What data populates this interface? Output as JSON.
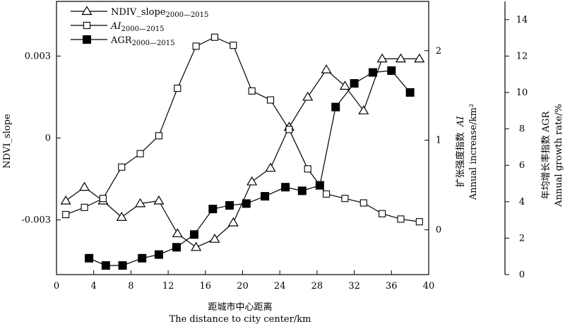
{
  "chart_data": {
    "type": "line",
    "xlabel": "距城市中心距离",
    "xlabel_en": "The distance to city center/km",
    "x_ticks": [
      0,
      4,
      8,
      12,
      16,
      20,
      24,
      28,
      32,
      36,
      40
    ],
    "xlim": [
      0,
      40
    ],
    "axes": {
      "left": {
        "label": "NDVI_slope",
        "ylim": [
          -0.005,
          0.005
        ],
        "ticks": [
          -0.003,
          0,
          0.003
        ],
        "tick_labels": [
          "-0.003",
          "0",
          "0.003"
        ]
      },
      "middle": {
        "label_zh": "扩张强度指数",
        "label_var": "AI",
        "label_en": "Annual increase/km²",
        "ylim": [
          -0.5,
          2.55
        ],
        "ticks": [
          0,
          1,
          2
        ],
        "tick_labels": [
          "0",
          "1",
          "2"
        ]
      },
      "right": {
        "label_zh": "年均增长率指数 AGR",
        "label_en": "Annual growth rate/%",
        "ylim": [
          0,
          15
        ],
        "ticks": [
          0,
          2,
          4,
          6,
          8,
          10,
          12,
          14
        ],
        "tick_labels": [
          "0",
          "2",
          "4",
          "6",
          "8",
          "10",
          "12",
          "14"
        ]
      }
    },
    "legend": {
      "position": "top-left",
      "entries": [
        {
          "main": "NDIV_slope",
          "sub": "2000—2015",
          "italic": false
        },
        {
          "main": "AI",
          "sub": "2000—2015",
          "italic": true
        },
        {
          "main": "AGR",
          "sub": "2000—2015",
          "italic": false
        }
      ]
    },
    "series": [
      {
        "name": "NDIV_slope2000—2015",
        "marker": "triangle-open",
        "axis": "left",
        "x": [
          1,
          3,
          5,
          7,
          9,
          11,
          13,
          15,
          17,
          19,
          21,
          23,
          25,
          27,
          29,
          31,
          33,
          35,
          37,
          39
        ],
        "values": [
          -0.0023,
          -0.0018,
          -0.0023,
          -0.0029,
          -0.0024,
          -0.0023,
          -0.0035,
          -0.004,
          -0.0037,
          -0.0031,
          -0.0016,
          -0.0011,
          0.0004,
          0.0015,
          0.0025,
          0.0019,
          0.001,
          0.0029,
          0.0029,
          0.0029
        ]
      },
      {
        "name": "AI2000—2015",
        "marker": "square-open",
        "axis": "middle",
        "x": [
          1,
          3,
          5,
          7,
          9,
          11,
          13,
          15,
          17,
          19,
          21,
          23,
          25,
          27,
          29,
          31,
          33,
          35,
          37,
          39
        ],
        "values": [
          0.17,
          0.25,
          0.35,
          0.7,
          0.85,
          1.05,
          1.58,
          2.05,
          2.15,
          2.06,
          1.55,
          1.45,
          1.12,
          0.68,
          0.4,
          0.35,
          0.3,
          0.18,
          0.12,
          0.09
        ]
      },
      {
        "name": "AGR2000—2015",
        "marker": "square-filled",
        "axis": "right",
        "x": [
          3.5,
          5.3,
          7.1,
          9.2,
          11,
          12.9,
          14.8,
          16.8,
          18.6,
          20.4,
          22.4,
          24.6,
          26.4,
          28.3,
          30,
          32,
          34,
          36,
          38
        ],
        "values": [
          0.9,
          0.5,
          0.5,
          0.9,
          1.1,
          1.5,
          2.2,
          3.6,
          3.8,
          3.9,
          4.3,
          4.8,
          4.6,
          4.9,
          9.2,
          10.5,
          11.1,
          11.2,
          10.0
        ]
      }
    ]
  }
}
